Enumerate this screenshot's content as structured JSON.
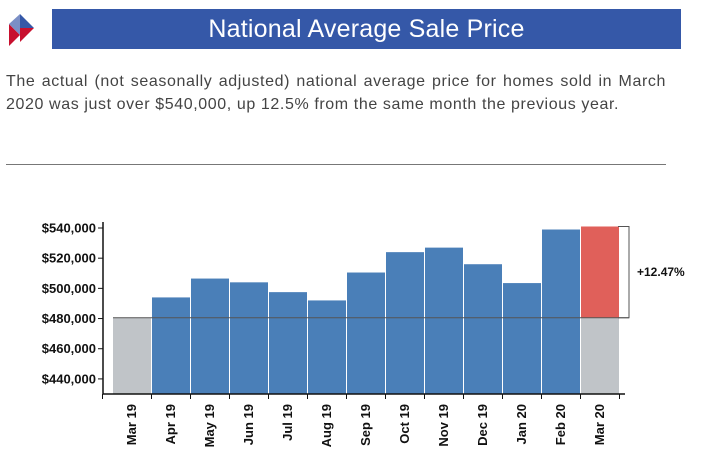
{
  "header": {
    "title": "National Average Sale Price",
    "logo_icon": "diamond-logo-icon"
  },
  "description": "The actual (not seasonally adjusted) national average price for homes sold in March 2020 was just over $540,000, up 12.5% from the same month the previous year.",
  "colors": {
    "banner": "#3558a8",
    "bar": "#4a7fb8",
    "highlight": "#e0605a",
    "base": "#c0c4c8"
  },
  "chart_data": {
    "type": "bar",
    "categories": [
      "Mar 19",
      "Apr 19",
      "May 19",
      "Jun 19",
      "Jul 19",
      "Aug 19",
      "Sep 19",
      "Oct 19",
      "Nov 19",
      "Dec 19",
      "Jan 20",
      "Feb 20",
      "Mar 20"
    ],
    "values": [
      480500,
      494000,
      506500,
      504000,
      497500,
      492000,
      510500,
      524000,
      527000,
      516000,
      503500,
      539000,
      541000
    ],
    "baseline": 480500,
    "ylim": [
      430000,
      540000
    ],
    "yticks": [
      440000,
      460000,
      480000,
      500000,
      520000,
      540000
    ],
    "ytick_labels": [
      "$440,000",
      "$460,000",
      "$480,000",
      "$500,000",
      "$520,000",
      "$540,000"
    ],
    "annotation": "+12.47%",
    "title": "",
    "xlabel": "",
    "ylabel": "",
    "grid": false
  }
}
